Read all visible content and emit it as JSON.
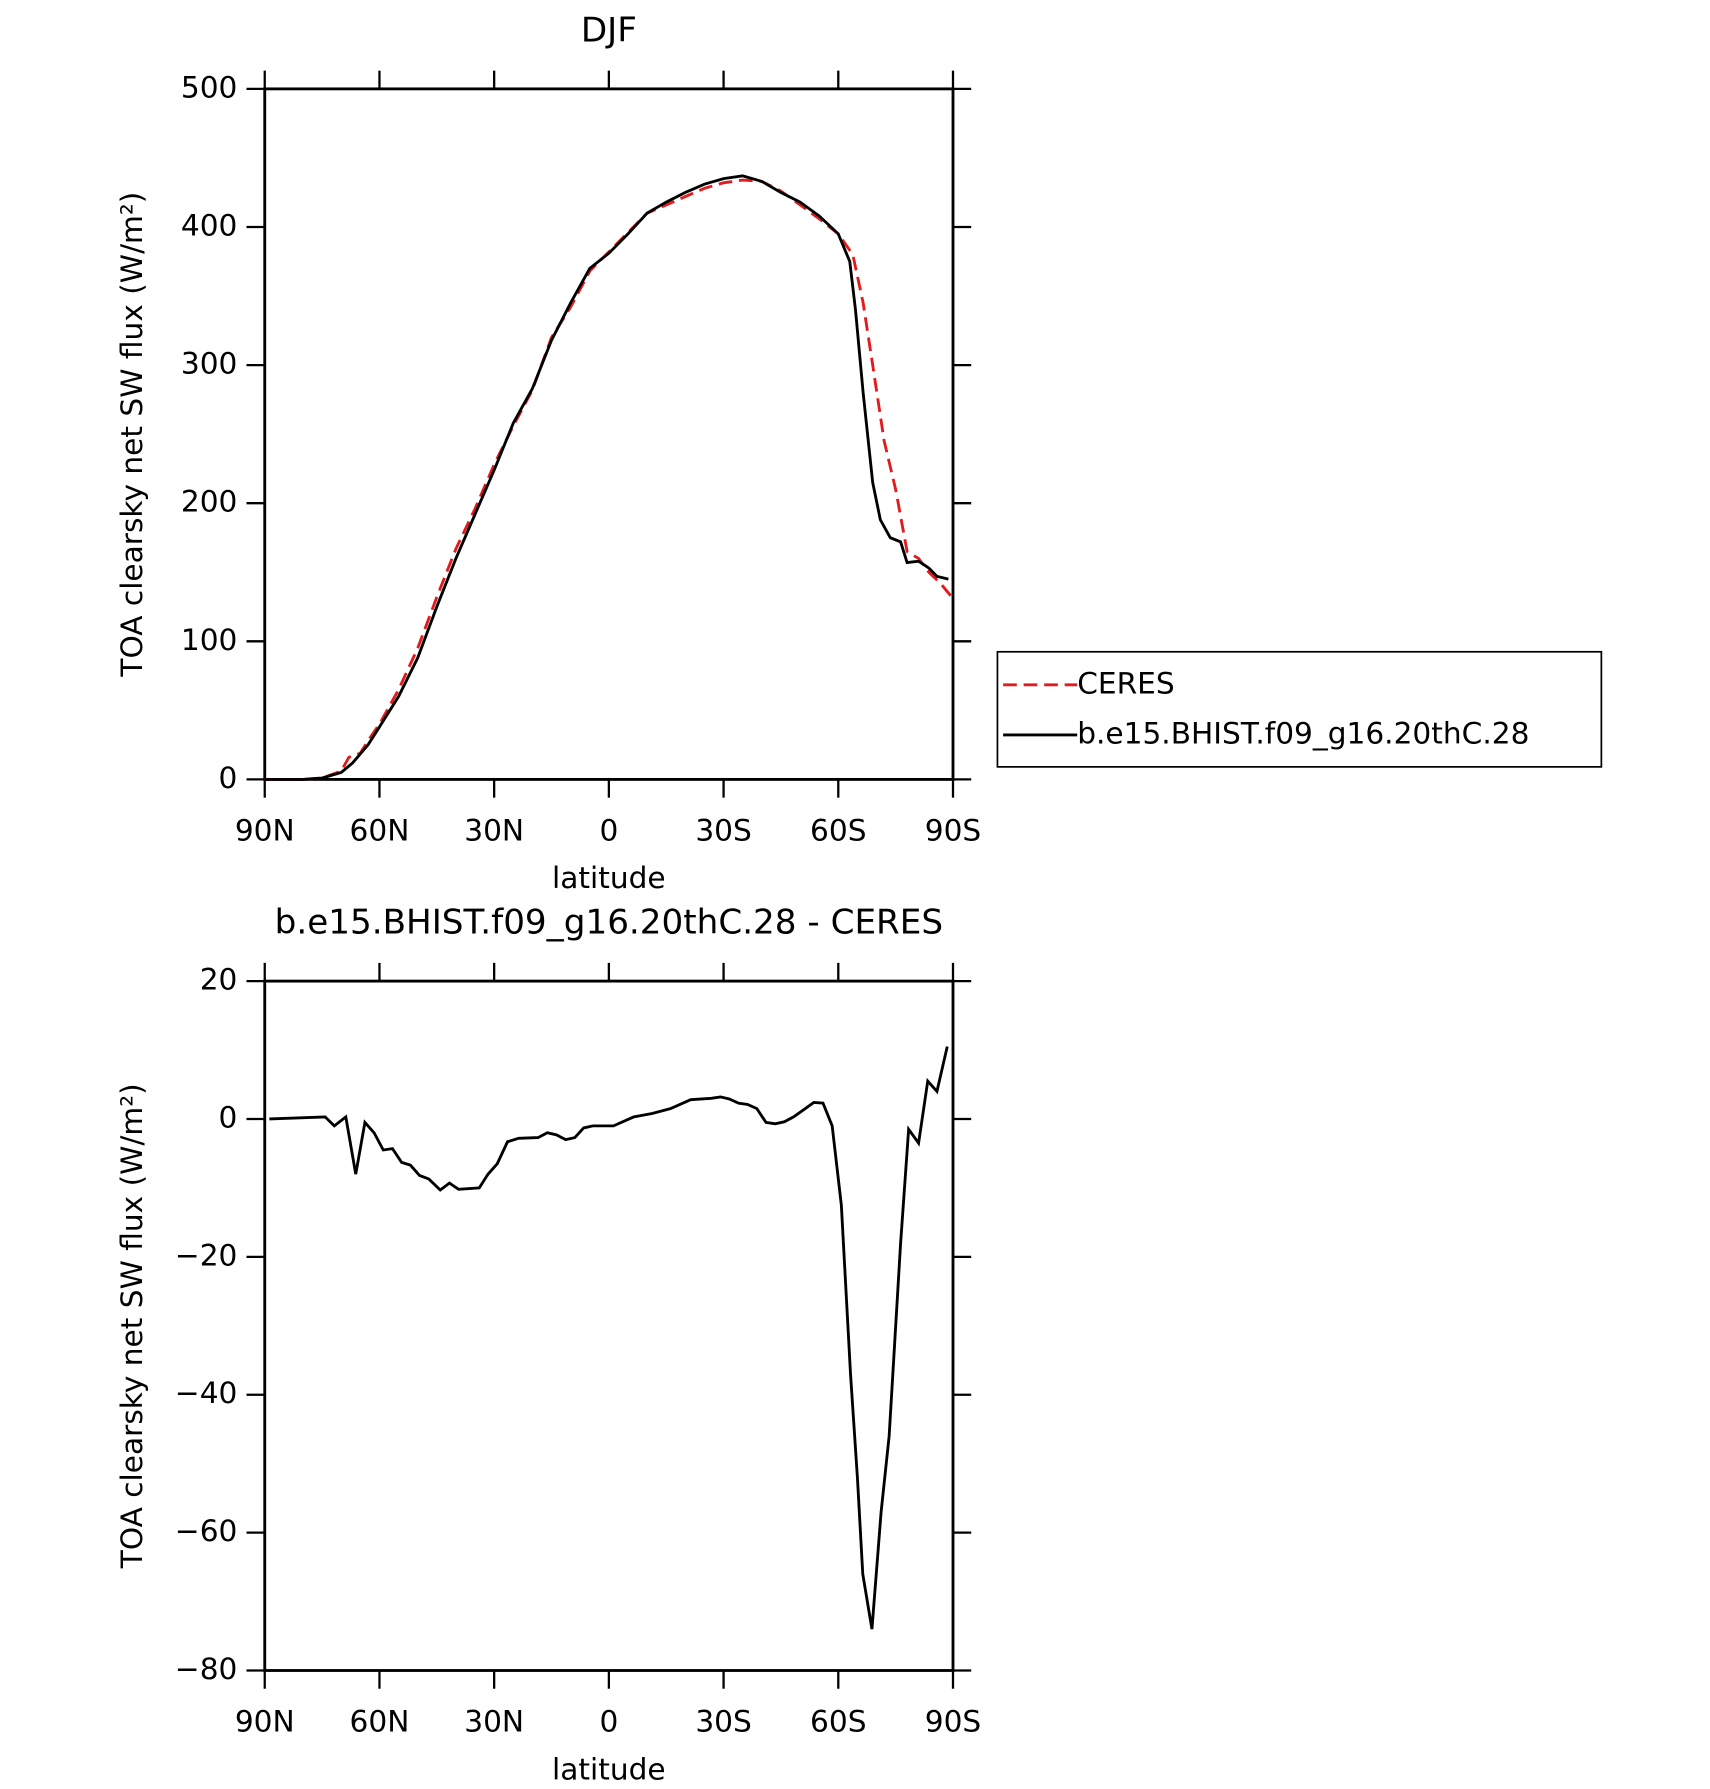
{
  "chart_data": [
    {
      "type": "line",
      "title": "DJF",
      "x_label": "latitude",
      "y_label": "TOA clearsky net SW flux (W/m²)",
      "xlim": [
        90,
        -90
      ],
      "xticks": [
        {
          "value": 90,
          "label": "90N"
        },
        {
          "value": 60,
          "label": "60N"
        },
        {
          "value": 30,
          "label": "30N"
        },
        0,
        {
          "value": -30,
          "label": "30S"
        },
        {
          "value": -60,
          "label": "60S"
        },
        {
          "value": -90,
          "label": "90S"
        }
      ],
      "ylim": [
        0,
        500
      ],
      "yticks": [
        0,
        100,
        200,
        300,
        400,
        500
      ],
      "series": [
        {
          "name": "CERES",
          "color": "#e41a1c",
          "dash": true,
          "x": [
            90,
            80,
            75,
            70,
            68,
            65,
            63,
            60,
            55,
            50,
            45,
            40,
            35,
            30,
            25,
            20,
            15,
            10,
            5,
            0,
            -5,
            -10,
            -15,
            -20,
            -25,
            -30,
            -35,
            -40,
            -45,
            -50,
            -55,
            -60,
            -63.8,
            -66.5,
            -69,
            -72,
            -75,
            -78,
            -81,
            -83.7,
            -86.7,
            -89.4
          ],
          "values": [
            0,
            0,
            1,
            6,
            16,
            19,
            28,
            40,
            65,
            95,
            132,
            167,
            196,
            228,
            256,
            282,
            320,
            342,
            368,
            382,
            396,
            410,
            416,
            422,
            428,
            432,
            434,
            433,
            426,
            416,
            406,
            395,
            380,
            345,
            300,
            245,
            210,
            165,
            160,
            150,
            142,
            133
          ]
        },
        {
          "name": "b.e15.BHIST.f09_g16.20thC.28",
          "color": "#000000",
          "dash": false,
          "x": [
            90,
            80,
            75,
            70,
            67,
            63,
            60,
            55,
            50,
            45,
            40,
            35,
            30,
            25,
            20,
            15,
            10,
            5,
            0,
            -5,
            -10,
            -15,
            -20,
            -25,
            -30,
            -35,
            -40,
            -45,
            -50,
            -55,
            -60,
            -63,
            -64.5,
            -66.5,
            -69,
            -71,
            -73.6,
            -76.3,
            -78,
            -81,
            -83.7,
            -85.8,
            -88.8
          ],
          "values": [
            0,
            0,
            1,
            5,
            12,
            25,
            38,
            60,
            88,
            125,
            160,
            192,
            224,
            258,
            283,
            318,
            345,
            370,
            381,
            395,
            410,
            418,
            425,
            431,
            435,
            437,
            433,
            425,
            418,
            408,
            395,
            375,
            340,
            280,
            215,
            188,
            175,
            172,
            157,
            158,
            153,
            147,
            145
          ]
        }
      ],
      "legend": "right"
    },
    {
      "type": "line",
      "title": "b.e15.BHIST.f09_g16.20thC.28 - CERES",
      "x_label": "latitude",
      "y_label": "TOA clearsky net SW flux (W/m²)",
      "xlim": [
        90,
        -90
      ],
      "xticks": [
        {
          "value": 90,
          "label": "90N"
        },
        {
          "value": 60,
          "label": "60N"
        },
        {
          "value": 30,
          "label": "30N"
        },
        0,
        {
          "value": -30,
          "label": "30S"
        },
        {
          "value": -60,
          "label": "60S"
        },
        {
          "value": -90,
          "label": "90S"
        }
      ],
      "ylim": [
        -80,
        20
      ],
      "yticks": [
        {
          "value": -80,
          "label": "−80"
        },
        {
          "value": -60,
          "label": "−60"
        },
        {
          "value": -40,
          "label": "−40"
        },
        {
          "value": -20,
          "label": "−20"
        },
        0,
        20
      ],
      "series": [
        {
          "color": "#000000",
          "x": [
            88.8,
            74.2,
            71.8,
            68.8,
            66.2,
            63.8,
            61.4,
            59,
            56.6,
            54.2,
            51.9,
            49.5,
            47.1,
            44.1,
            41.7,
            39.3,
            33.9,
            31.6,
            29.2,
            26.5,
            23.6,
            18.5,
            16.1,
            13.7,
            11.3,
            8.9,
            6.6,
            4.2,
            -1.2,
            -6.5,
            -11.3,
            -16.1,
            -21.4,
            -26.8,
            -29.2,
            -31.5,
            -33.9,
            -36.3,
            -38.7,
            -41.1,
            -43.5,
            -45.9,
            -48.3,
            -50.6,
            -53.6,
            -56,
            -58.4,
            -60.8,
            -63.2,
            -65,
            -66.4,
            -68.8,
            -71.2,
            -73.3,
            -76.3,
            -78.4,
            -81,
            -83.4,
            -85.8,
            -88.5
          ],
          "values": [
            0,
            0.3,
            -1,
            0.3,
            -8,
            -0.5,
            -2,
            -4.5,
            -4.3,
            -6.3,
            -6.7,
            -8.2,
            -8.7,
            -10.3,
            -9.3,
            -10.2,
            -10,
            -8,
            -6.5,
            -3.3,
            -2.8,
            -2.7,
            -2,
            -2.3,
            -3,
            -2.7,
            -1.3,
            -1,
            -1,
            0.3,
            0.8,
            1.5,
            2.8,
            3,
            3.2,
            2.9,
            2.3,
            2.1,
            1.5,
            -0.5,
            -0.7,
            -0.4,
            0.3,
            1.2,
            2.4,
            2.3,
            -1,
            -12.5,
            -37,
            -52,
            -66,
            -74,
            -57,
            -46,
            -18,
            -1.5,
            -3.5,
            5.5,
            4,
            10.5
          ]
        }
      ]
    }
  ]
}
